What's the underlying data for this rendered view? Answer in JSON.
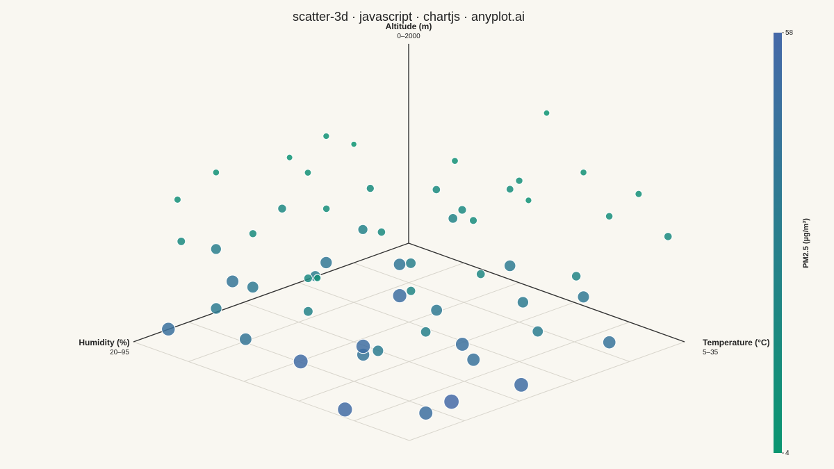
{
  "chart_data": {
    "type": "scatter3d",
    "title": "scatter-3d · javascript · chartjs · anyplot.ai",
    "x_label": "Humidity (%)",
    "x_range_label": "20–95",
    "xlim": [
      20,
      95
    ],
    "xticks": [
      20,
      35,
      50,
      65,
      80,
      95
    ],
    "y_label": "Temperature (°C)",
    "y_range_label": "5–35",
    "ylim": [
      5,
      35
    ],
    "yticks": [
      5,
      11,
      17,
      23,
      29,
      35
    ],
    "z_label": "Altitude (m)",
    "z_range_label": "0–2000",
    "zlim": [
      0,
      2000
    ],
    "color_label": "PM2.5 (µg/m³)",
    "clim": [
      4,
      58
    ],
    "cticks": [
      4,
      58
    ],
    "colorscale": [
      "#0b9670",
      "#4669a8"
    ],
    "grid": true,
    "x": [
      80,
      88,
      70,
      60,
      55,
      75,
      45,
      40,
      30,
      25,
      35,
      50,
      65,
      85,
      92,
      28,
      22,
      38,
      58,
      48,
      72,
      62,
      42,
      90,
      78,
      33,
      52,
      68,
      86,
      55,
      44,
      30,
      75,
      92,
      80,
      65,
      50,
      38,
      88,
      70,
      58,
      45,
      95,
      82,
      62,
      35,
      25,
      93,
      76,
      68,
      55,
      40,
      85,
      30,
      60,
      20,
      50,
      95,
      75,
      90
    ],
    "y": [
      8,
      7,
      12,
      15,
      10,
      18,
      20,
      25,
      28,
      32,
      22,
      24,
      20,
      14,
      9,
      30,
      34,
      18,
      28,
      12,
      26,
      8,
      32,
      22,
      30,
      15,
      18,
      14,
      28,
      33,
      27,
      20,
      10,
      16,
      24,
      30,
      8,
      34,
      34,
      20,
      26,
      14,
      28,
      18,
      34,
      10,
      26,
      8,
      32,
      5,
      22,
      8,
      20,
      12,
      10,
      20,
      30,
      25,
      6,
      12
    ],
    "z": [
      1600,
      1400,
      1750,
      1850,
      1700,
      1500,
      1650,
      1550,
      1600,
      1450,
      1300,
      1250,
      1200,
      1250,
      1100,
      1200,
      1050,
      1000,
      950,
      1150,
      900,
      1000,
      850,
      800,
      700,
      750,
      650,
      600,
      550,
      500,
      450,
      400,
      450,
      350,
      300,
      250,
      300,
      200,
      150,
      120,
      180,
      100,
      80,
      60,
      90,
      150,
      220,
      200,
      40,
      250,
      350,
      500,
      1000,
      900,
      1400,
      1800,
      1650,
      1300,
      700,
      500
    ],
    "values": [
      10,
      12,
      8,
      6,
      9,
      14,
      11,
      13,
      10,
      12,
      15,
      16,
      18,
      17,
      19,
      14,
      18,
      20,
      22,
      17,
      24,
      21,
      25,
      27,
      30,
      26,
      31,
      33,
      35,
      34,
      36,
      37,
      38,
      42,
      44,
      46,
      40,
      45,
      50,
      52,
      49,
      51,
      55,
      54,
      53,
      41,
      39,
      48,
      57,
      43,
      38,
      28,
      20,
      18,
      11,
      7,
      9,
      13,
      32,
      36
    ]
  }
}
